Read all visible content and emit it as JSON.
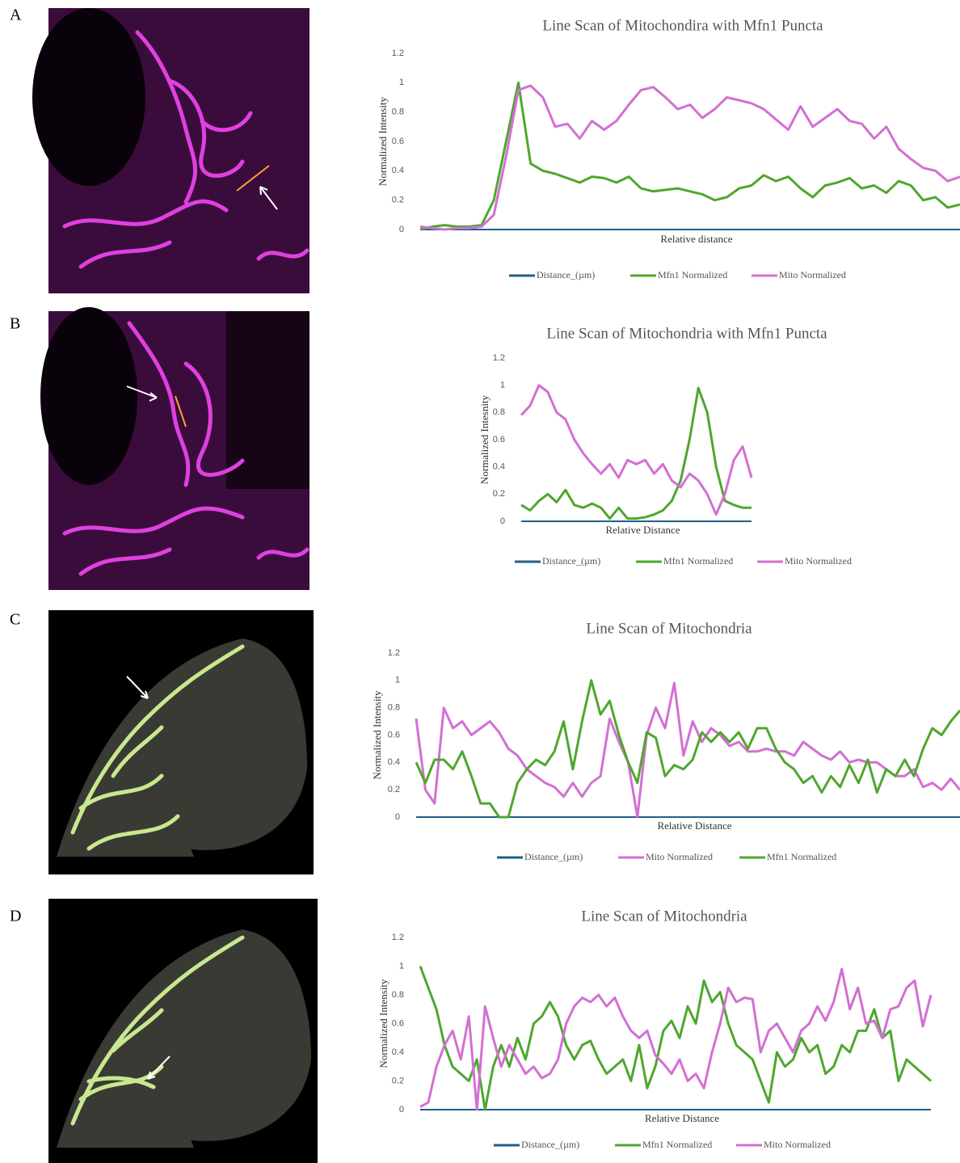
{
  "panel_labels": [
    "A",
    "B",
    "C",
    "D"
  ],
  "chart_data": [
    {
      "type": "line",
      "title": "Line Scan of Mitochondira with Mfn1 Puncta",
      "x_label": "Relative distance",
      "y_label": "Normalized Intensity",
      "ylim": [
        0,
        1.2
      ],
      "yticks": [
        0,
        0.2,
        0.4,
        0.6,
        0.8,
        1,
        1.2
      ],
      "grid": false,
      "legend": "bottom",
      "series": [
        {
          "name": "Distance_(µm)",
          "color": "#1f5f8b",
          "values": [
            0,
            0,
            0,
            0,
            0,
            0,
            0,
            0,
            0,
            0,
            0,
            0,
            0,
            0,
            0,
            0,
            0,
            0,
            0,
            0,
            0,
            0,
            0,
            0,
            0,
            0,
            0,
            0,
            0,
            0,
            0,
            0,
            0,
            0,
            0,
            0,
            0,
            0,
            0,
            0,
            0,
            0,
            0,
            0,
            0
          ]
        },
        {
          "name": "Mfn1 Normalized",
          "color": "#4ea72e",
          "values": [
            0,
            0.02,
            0.03,
            0.02,
            0.02,
            0.03,
            0.2,
            0.6,
            1,
            0.45,
            0.4,
            0.38,
            0.35,
            0.32,
            0.36,
            0.35,
            0.32,
            0.36,
            0.28,
            0.26,
            0.27,
            0.28,
            0.26,
            0.24,
            0.2,
            0.22,
            0.28,
            0.3,
            0.37,
            0.33,
            0.36,
            0.28,
            0.22,
            0.3,
            0.32,
            0.35,
            0.28,
            0.3,
            0.25,
            0.33,
            0.3,
            0.2,
            0.22,
            0.15,
            0.17
          ]
        },
        {
          "name": "Mito Normalized",
          "color": "#d36fd3",
          "values": [
            0.02,
            0.01,
            0,
            0.01,
            0.01,
            0.02,
            0.1,
            0.5,
            0.95,
            0.98,
            0.9,
            0.7,
            0.72,
            0.62,
            0.74,
            0.68,
            0.74,
            0.85,
            0.95,
            0.97,
            0.9,
            0.82,
            0.85,
            0.76,
            0.82,
            0.9,
            0.88,
            0.86,
            0.82,
            0.75,
            0.68,
            0.84,
            0.7,
            0.76,
            0.82,
            0.74,
            0.72,
            0.62,
            0.7,
            0.55,
            0.48,
            0.42,
            0.4,
            0.33,
            0.36
          ]
        }
      ]
    },
    {
      "type": "line",
      "title": "Line Scan of Mitochondria with Mfn1 Puncta",
      "x_label": "Relative Distance",
      "y_label": "Normalized Intesnity",
      "ylim": [
        0,
        1.2
      ],
      "yticks": [
        0,
        0.2,
        0.4,
        0.6,
        0.8,
        1,
        1.2
      ],
      "grid": false,
      "legend": "bottom",
      "series": [
        {
          "name": "Distance_(µm)",
          "color": "#1f5f8b",
          "values": [
            0,
            0,
            0,
            0,
            0,
            0,
            0,
            0,
            0,
            0,
            0,
            0,
            0,
            0,
            0,
            0,
            0,
            0,
            0,
            0,
            0,
            0,
            0,
            0,
            0,
            0,
            0
          ]
        },
        {
          "name": "Mfn1 Normalized",
          "color": "#4ea72e",
          "values": [
            0.12,
            0.08,
            0.15,
            0.2,
            0.14,
            0.23,
            0.12,
            0.1,
            0.13,
            0.1,
            0.02,
            0.1,
            0.02,
            0.02,
            0.03,
            0.05,
            0.08,
            0.15,
            0.3,
            0.6,
            0.98,
            0.8,
            0.4,
            0.15,
            0.12,
            0.1,
            0.1
          ]
        },
        {
          "name": "Mito Normalized",
          "color": "#d36fd3",
          "values": [
            0.78,
            0.85,
            1,
            0.95,
            0.8,
            0.75,
            0.6,
            0.5,
            0.42,
            0.35,
            0.42,
            0.32,
            0.45,
            0.42,
            0.45,
            0.35,
            0.42,
            0.3,
            0.25,
            0.35,
            0.3,
            0.2,
            0.05,
            0.2,
            0.45,
            0.55,
            0.32
          ]
        }
      ]
    },
    {
      "type": "line",
      "title": "Line Scan of Mitochondria",
      "x_label": "Relative Distance",
      "y_label": "Normalized Intensity",
      "ylim": [
        0,
        1.2
      ],
      "yticks": [
        0,
        0.2,
        0.4,
        0.6,
        0.8,
        1,
        1.2
      ],
      "grid": false,
      "legend": "bottom",
      "series": [
        {
          "name": "Distance_(µm)",
          "color": "#1f5f8b",
          "values": [
            0,
            0,
            0,
            0,
            0,
            0,
            0,
            0,
            0,
            0,
            0,
            0,
            0,
            0,
            0,
            0,
            0,
            0,
            0,
            0,
            0,
            0,
            0,
            0,
            0,
            0,
            0,
            0,
            0,
            0,
            0,
            0,
            0,
            0,
            0,
            0,
            0,
            0,
            0,
            0,
            0,
            0,
            0,
            0,
            0,
            0,
            0,
            0,
            0,
            0,
            0,
            0,
            0,
            0,
            0,
            0,
            0,
            0,
            0,
            0
          ]
        },
        {
          "name": "Mito Normalized",
          "color": "#d36fd3",
          "values": [
            0.72,
            0.2,
            0.1,
            0.8,
            0.65,
            0.7,
            0.6,
            0.65,
            0.7,
            0.62,
            0.5,
            0.45,
            0.35,
            0.3,
            0.25,
            0.22,
            0.15,
            0.25,
            0.15,
            0.25,
            0.3,
            0.72,
            0.55,
            0.4,
            0,
            0.6,
            0.8,
            0.65,
            0.98,
            0.45,
            0.7,
            0.55,
            0.65,
            0.6,
            0.52,
            0.55,
            0.48,
            0.48,
            0.5,
            0.48,
            0.48,
            0.45,
            0.55,
            0.5,
            0.45,
            0.42,
            0.48,
            0.4,
            0.42,
            0.4,
            0.4,
            0.35,
            0.3,
            0.3,
            0.35,
            0.22,
            0.25,
            0.2,
            0.28,
            0.2
          ]
        },
        {
          "name": "Mfn1 Normalized",
          "color": "#4ea72e",
          "values": [
            0.4,
            0.25,
            0.42,
            0.42,
            0.35,
            0.48,
            0.3,
            0.1,
            0.1,
            0,
            0,
            0.25,
            0.35,
            0.42,
            0.38,
            0.48,
            0.7,
            0.35,
            0.7,
            1,
            0.75,
            0.85,
            0.6,
            0.4,
            0.25,
            0.62,
            0.58,
            0.3,
            0.38,
            0.35,
            0.42,
            0.62,
            0.55,
            0.62,
            0.55,
            0.62,
            0.5,
            0.65,
            0.65,
            0.5,
            0.4,
            0.35,
            0.25,
            0.3,
            0.18,
            0.3,
            0.22,
            0.38,
            0.25,
            0.42,
            0.18,
            0.35,
            0.3,
            0.42,
            0.3,
            0.5,
            0.65,
            0.6,
            0.7,
            0.78
          ]
        }
      ]
    },
    {
      "type": "line",
      "title": "Line Scan of Mitochondria",
      "x_label": "Relative Distance",
      "y_label": "Normalized Intensity",
      "ylim": [
        0,
        1.2
      ],
      "yticks": [
        0,
        0.2,
        0.4,
        0.6,
        0.8,
        1,
        1.2
      ],
      "grid": false,
      "legend": "bottom",
      "series": [
        {
          "name": "Distance_(µm)",
          "color": "#1f5f8b",
          "values": [
            0,
            0,
            0,
            0,
            0,
            0,
            0,
            0,
            0,
            0,
            0,
            0,
            0,
            0,
            0,
            0,
            0,
            0,
            0,
            0,
            0,
            0,
            0,
            0,
            0,
            0,
            0,
            0,
            0,
            0,
            0,
            0,
            0,
            0,
            0,
            0,
            0,
            0,
            0,
            0,
            0,
            0,
            0,
            0,
            0,
            0,
            0,
            0,
            0,
            0,
            0,
            0,
            0,
            0,
            0,
            0,
            0,
            0,
            0,
            0,
            0,
            0,
            0,
            0
          ]
        },
        {
          "name": "Mfn1 Normalized",
          "color": "#4ea72e",
          "values": [
            1,
            0.85,
            0.7,
            0.45,
            0.3,
            0.25,
            0.2,
            0.35,
            0,
            0.3,
            0.45,
            0.3,
            0.5,
            0.35,
            0.6,
            0.65,
            0.75,
            0.65,
            0.45,
            0.35,
            0.45,
            0.48,
            0.35,
            0.25,
            0.3,
            0.35,
            0.2,
            0.45,
            0.15,
            0.3,
            0.55,
            0.62,
            0.5,
            0.72,
            0.6,
            0.9,
            0.75,
            0.82,
            0.6,
            0.45,
            0.4,
            0.35,
            0.2,
            0.05,
            0.4,
            0.3,
            0.35,
            0.5,
            0.4,
            0.45,
            0.25,
            0.3,
            0.45,
            0.4,
            0.55,
            0.55,
            0.7,
            0.5,
            0.55,
            0.2,
            0.35,
            0.3,
            0.25,
            0.2
          ]
        },
        {
          "name": "Mito Normalized",
          "color": "#d36fd3",
          "values": [
            0.02,
            0.05,
            0.3,
            0.45,
            0.55,
            0.35,
            0.65,
            0,
            0.72,
            0.5,
            0.3,
            0.45,
            0.35,
            0.25,
            0.3,
            0.22,
            0.25,
            0.35,
            0.6,
            0.72,
            0.78,
            0.75,
            0.8,
            0.72,
            0.78,
            0.65,
            0.55,
            0.5,
            0.55,
            0.38,
            0.32,
            0.25,
            0.35,
            0.2,
            0.25,
            0.15,
            0.4,
            0.6,
            0.85,
            0.75,
            0.78,
            0.77,
            0.4,
            0.55,
            0.6,
            0.5,
            0.4,
            0.55,
            0.6,
            0.72,
            0.62,
            0.75,
            0.98,
            0.7,
            0.85,
            0.6,
            0.62,
            0.5,
            0.7,
            0.72,
            0.85,
            0.9,
            0.58,
            0.8
          ]
        }
      ]
    }
  ]
}
